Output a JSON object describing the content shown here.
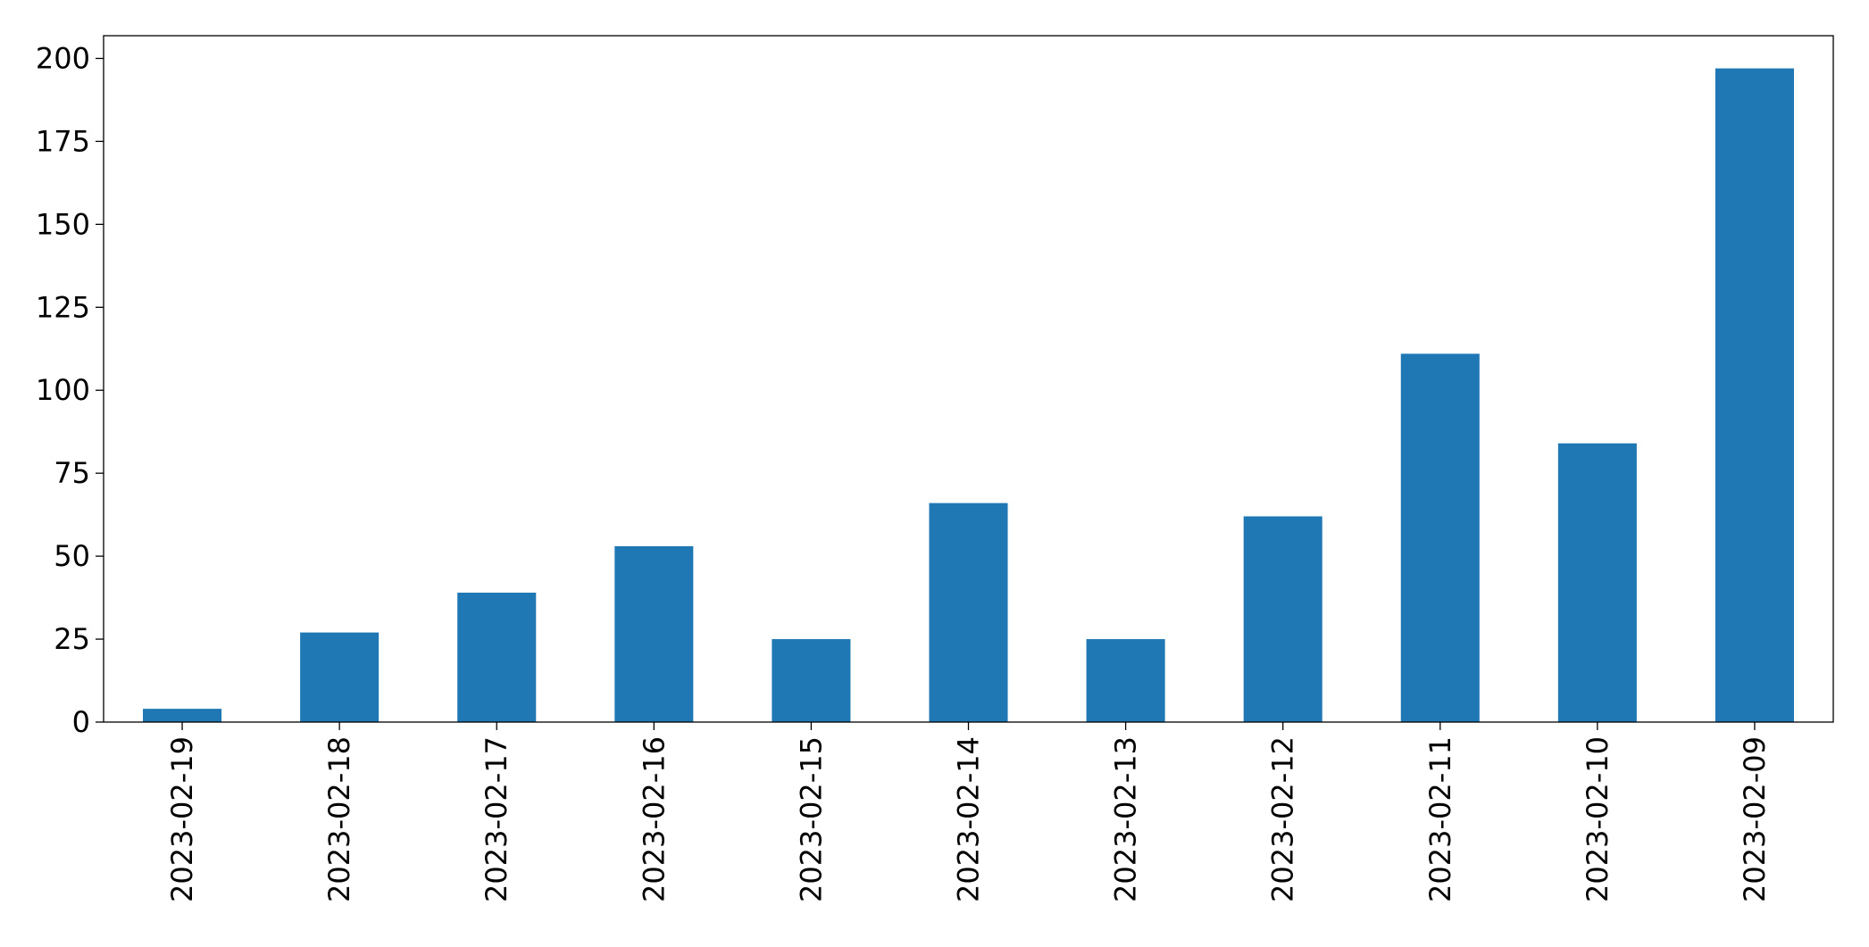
{
  "chart_data": {
    "type": "bar",
    "categories": [
      "2023-02-19",
      "2023-02-18",
      "2023-02-17",
      "2023-02-16",
      "2023-02-15",
      "2023-02-14",
      "2023-02-13",
      "2023-02-12",
      "2023-02-11",
      "2023-02-10",
      "2023-02-09"
    ],
    "values": [
      4,
      27,
      39,
      53,
      25,
      66,
      25,
      62,
      111,
      84,
      197
    ],
    "color": "#1f77b4",
    "ylim": [
      0,
      206.85
    ],
    "yticks": [
      0,
      25,
      50,
      75,
      100,
      125,
      150,
      175,
      200
    ],
    "grid": false
  }
}
